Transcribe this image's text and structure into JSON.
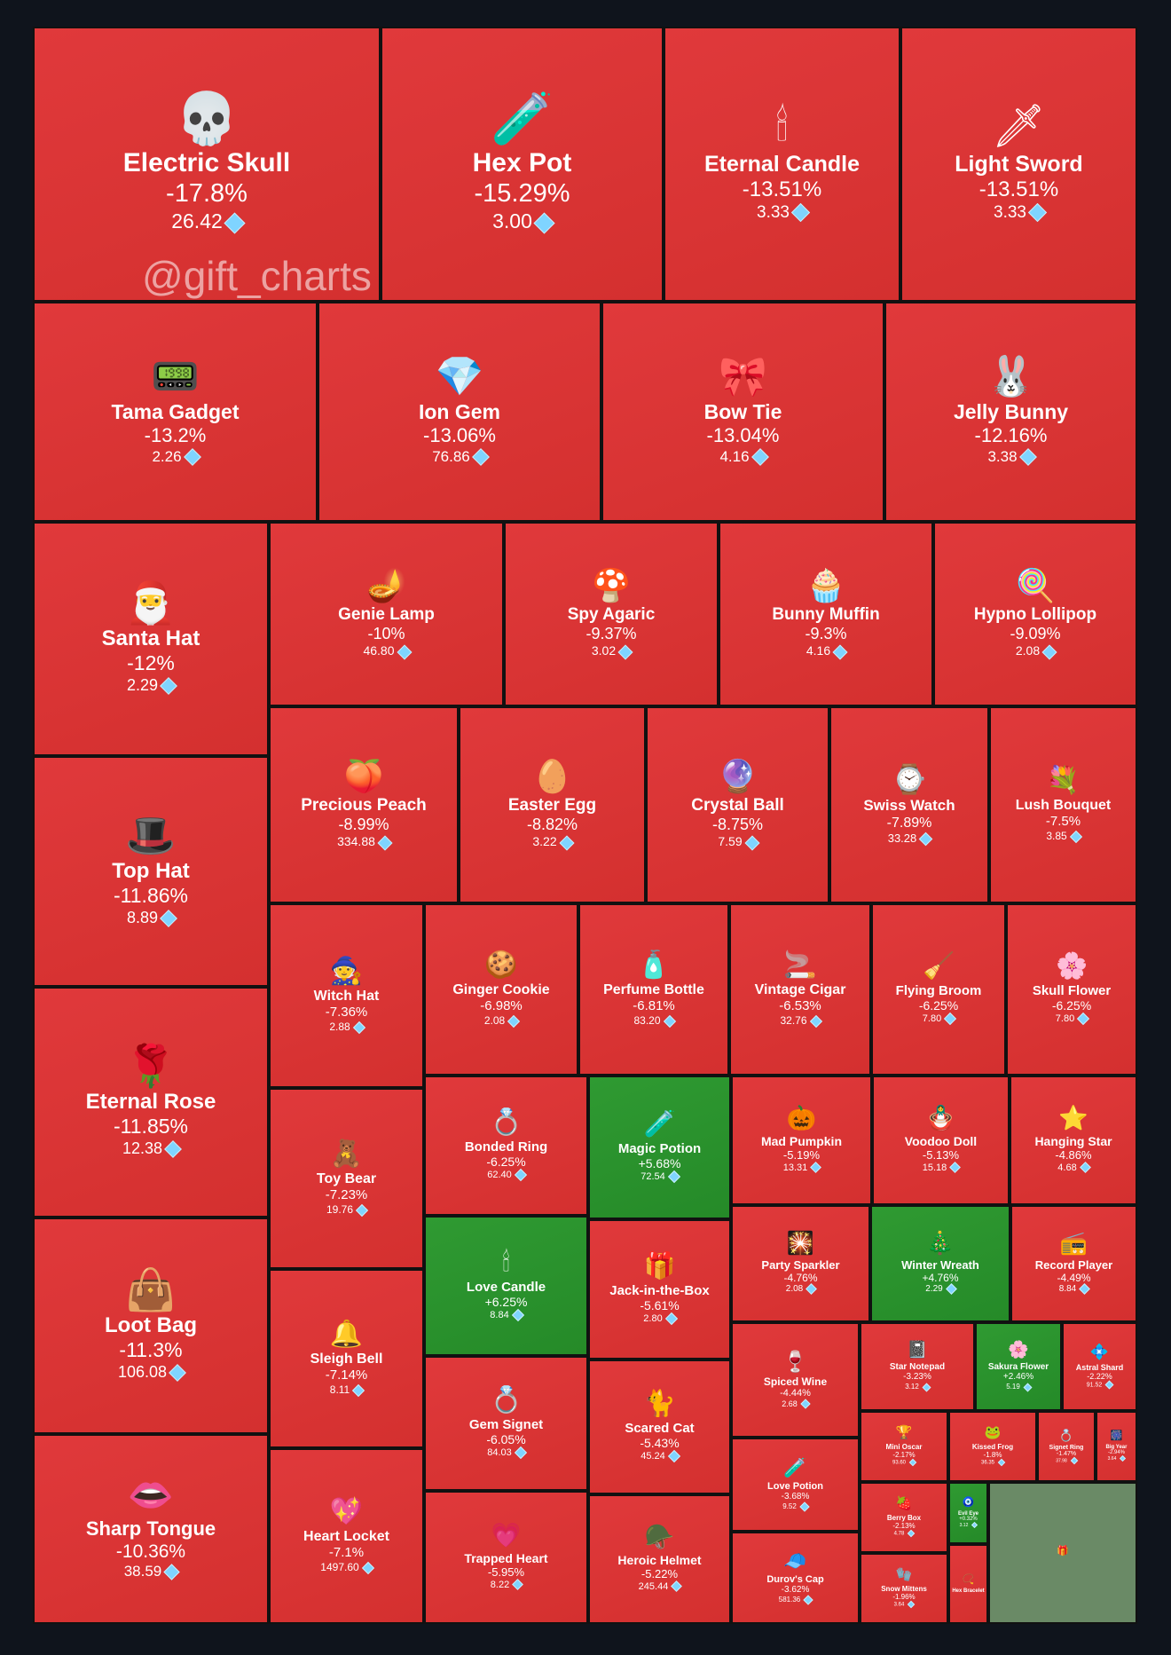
{
  "watermark": "@gift_charts",
  "colors": {
    "negative": "#d7322f",
    "positive": "#2a8f2c",
    "background": "#0f141c",
    "gem": "#7fd4ff"
  },
  "chart_data": {
    "type": "treemap",
    "items": [
      {
        "name": "Electric Skull",
        "change": "-17.8%",
        "price": "26.42",
        "icon": "💀"
      },
      {
        "name": "Hex Pot",
        "change": "-15.29%",
        "price": "3.00",
        "icon": "🧪"
      },
      {
        "name": "Eternal Candle",
        "change": "-13.51%",
        "price": "3.33",
        "icon": "🕯"
      },
      {
        "name": "Light Sword",
        "change": "-13.51%",
        "price": "3.33",
        "icon": "🗡"
      },
      {
        "name": "Tama Gadget",
        "change": "-13.2%",
        "price": "2.26",
        "icon": "📟"
      },
      {
        "name": "Ion Gem",
        "change": "-13.06%",
        "price": "76.86",
        "icon": "💎"
      },
      {
        "name": "Bow Tie",
        "change": "-13.04%",
        "price": "4.16",
        "icon": "🎀"
      },
      {
        "name": "Jelly Bunny",
        "change": "-12.16%",
        "price": "3.38",
        "icon": "🐰"
      },
      {
        "name": "Santa Hat",
        "change": "-12%",
        "price": "2.29",
        "icon": "🎅"
      },
      {
        "name": "Genie Lamp",
        "change": "-10%",
        "price": "46.80",
        "icon": "🪔"
      },
      {
        "name": "Spy Agaric",
        "change": "-9.37%",
        "price": "3.02",
        "icon": "🍄"
      },
      {
        "name": "Bunny Muffin",
        "change": "-9.3%",
        "price": "4.16",
        "icon": "🧁"
      },
      {
        "name": "Hypno Lollipop",
        "change": "-9.09%",
        "price": "2.08",
        "icon": "🍭"
      },
      {
        "name": "Top Hat",
        "change": "-11.86%",
        "price": "8.89",
        "icon": "🎩"
      },
      {
        "name": "Precious Peach",
        "change": "-8.99%",
        "price": "334.88",
        "icon": "🍑"
      },
      {
        "name": "Easter Egg",
        "change": "-8.82%",
        "price": "3.22",
        "icon": "🥚"
      },
      {
        "name": "Crystal Ball",
        "change": "-8.75%",
        "price": "7.59",
        "icon": "🔮"
      },
      {
        "name": "Swiss Watch",
        "change": "-7.89%",
        "price": "33.28",
        "icon": "⌚"
      },
      {
        "name": "Lush Bouquet",
        "change": "-7.5%",
        "price": "3.85",
        "icon": "💐"
      },
      {
        "name": "Witch Hat",
        "change": "-7.36%",
        "price": "2.88",
        "icon": "🧙"
      },
      {
        "name": "Ginger Cookie",
        "change": "-6.98%",
        "price": "2.08",
        "icon": "🍪"
      },
      {
        "name": "Perfume Bottle",
        "change": "-6.81%",
        "price": "83.20",
        "icon": "🧴"
      },
      {
        "name": "Vintage Cigar",
        "change": "-6.53%",
        "price": "32.76",
        "icon": "🚬"
      },
      {
        "name": "Flying Broom",
        "change": "-6.25%",
        "price": "7.80",
        "icon": "🧹"
      },
      {
        "name": "Skull Flower",
        "change": "-6.25%",
        "price": "7.80",
        "icon": "🌸"
      },
      {
        "name": "Eternal Rose",
        "change": "-11.85%",
        "price": "12.38",
        "icon": "🌹"
      },
      {
        "name": "Toy Bear",
        "change": "-7.23%",
        "price": "19.76",
        "icon": "🧸"
      },
      {
        "name": "Bonded Ring",
        "change": "-6.25%",
        "price": "62.40",
        "icon": "💍"
      },
      {
        "name": "Magic Potion",
        "change": "+5.68%",
        "price": "72.54",
        "icon": "🧪"
      },
      {
        "name": "Mad Pumpkin",
        "change": "-5.19%",
        "price": "13.31",
        "icon": "🎃"
      },
      {
        "name": "Voodoo Doll",
        "change": "-5.13%",
        "price": "15.18",
        "icon": "🪆"
      },
      {
        "name": "Hanging Star",
        "change": "-4.86%",
        "price": "4.68",
        "icon": "⭐"
      },
      {
        "name": "Love Candle",
        "change": "+6.25%",
        "price": "8.84",
        "icon": "🕯"
      },
      {
        "name": "Jack-in-the-Box",
        "change": "-5.61%",
        "price": "2.80",
        "icon": "🎁"
      },
      {
        "name": "Party Sparkler",
        "change": "-4.76%",
        "price": "2.08",
        "icon": "🎇"
      },
      {
        "name": "Winter Wreath",
        "change": "+4.76%",
        "price": "2.29",
        "icon": "🎄"
      },
      {
        "name": "Record Player",
        "change": "-4.49%",
        "price": "8.84",
        "icon": "📻"
      },
      {
        "name": "Loot Bag",
        "change": "-11.3%",
        "price": "106.08",
        "icon": "👜"
      },
      {
        "name": "Sleigh Bell",
        "change": "-7.14%",
        "price": "8.11",
        "icon": "🔔"
      },
      {
        "name": "Spiced Wine",
        "change": "-4.44%",
        "price": "2.68",
        "icon": "🍷"
      },
      {
        "name": "Star Notepad",
        "change": "-3.23%",
        "price": "3.12",
        "icon": "📓"
      },
      {
        "name": "Sakura Flower",
        "change": "+2.46%",
        "price": "5.19",
        "icon": "🌸"
      },
      {
        "name": "Astral Shard",
        "change": "-2.22%",
        "price": "91.52",
        "icon": "💠"
      },
      {
        "name": "Gem Signet",
        "change": "-6.05%",
        "price": "84.03",
        "icon": "💍"
      },
      {
        "name": "Scared Cat",
        "change": "-5.43%",
        "price": "45.24",
        "icon": "🐈"
      },
      {
        "name": "Love Potion",
        "change": "-3.68%",
        "price": "9.52",
        "icon": "🧪"
      },
      {
        "name": "Mini Oscar",
        "change": "-2.17%",
        "price": "93.60",
        "icon": "🏆"
      },
      {
        "name": "Kissed Frog",
        "change": "-1.8%",
        "price": "36.35",
        "icon": "🐸"
      },
      {
        "name": "Signet Ring",
        "change": "-1.47%",
        "price": "37.98",
        "icon": "💍"
      },
      {
        "name": "Big Year",
        "change": "-2.94%",
        "price": "3.64",
        "icon": "🎆"
      },
      {
        "name": "Sharp Tongue",
        "change": "-10.36%",
        "price": "38.59",
        "icon": "👄"
      },
      {
        "name": "Heart Locket",
        "change": "-7.1%",
        "price": "1497.60",
        "icon": "💖"
      },
      {
        "name": "Trapped Heart",
        "change": "-5.95%",
        "price": "8.22",
        "icon": "💗"
      },
      {
        "name": "Heroic Helmet",
        "change": "-5.22%",
        "price": "245.44",
        "icon": "🪖"
      },
      {
        "name": "Durov's Cap",
        "change": "-3.62%",
        "price": "581.36",
        "icon": "🧢"
      },
      {
        "name": "Berry Box",
        "change": "-2.13%",
        "price": "4.78",
        "icon": "🍓"
      },
      {
        "name": "Snow Mittens",
        "change": "-1.96%",
        "price": "3.64",
        "icon": "🧤"
      },
      {
        "name": "Evil Eye",
        "change": "+0.32%",
        "price": "3.12",
        "icon": "🧿"
      },
      {
        "name": "Hex Bracelet",
        "change": "",
        "price": "",
        "icon": "📿"
      },
      {
        "name": "",
        "change": "",
        "price": "",
        "icon": "🎁"
      }
    ]
  }
}
